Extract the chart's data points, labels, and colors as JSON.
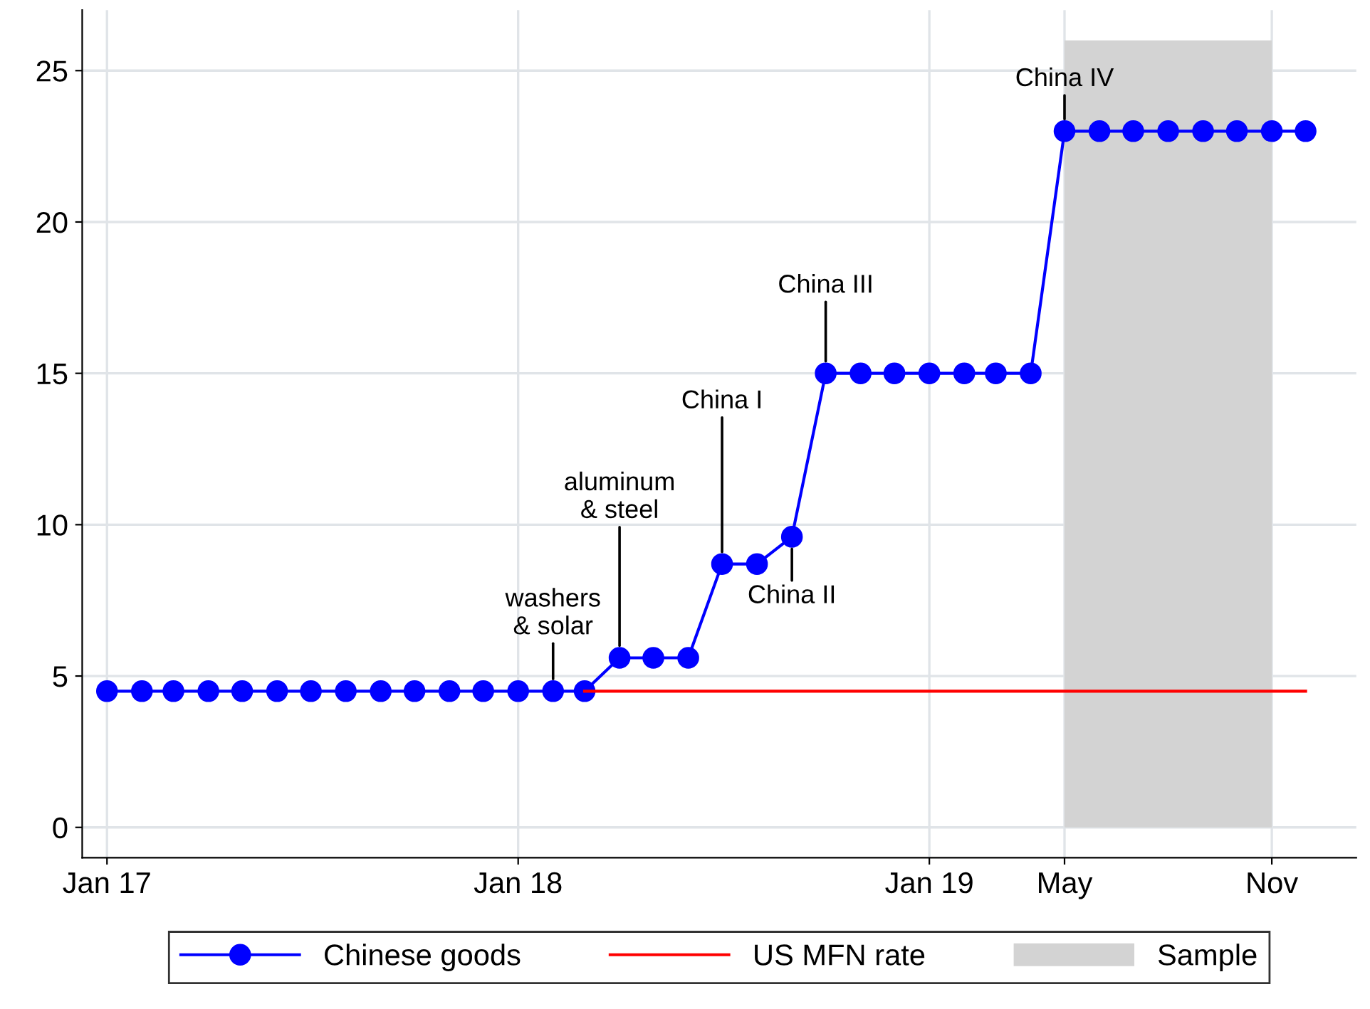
{
  "chart_data": {
    "type": "line",
    "series": [
      {
        "name": "Chinese goods",
        "color": "#0000ff",
        "marker": "circle",
        "x": [
          "2017-01",
          "2017-02",
          "2017-03",
          "2017-04",
          "2017-05",
          "2017-06",
          "2017-07",
          "2017-08",
          "2017-09",
          "2017-10",
          "2017-11",
          "2017-12",
          "2018-01",
          "2018-02",
          "2018-03",
          "2018-04",
          "2018-05",
          "2018-06",
          "2018-07",
          "2018-08",
          "2018-09",
          "2018-10",
          "2018-11",
          "2018-12",
          "2019-01",
          "2019-02",
          "2019-03",
          "2019-04",
          "2019-05",
          "2019-06",
          "2019-07",
          "2019-08",
          "2019-09",
          "2019-10",
          "2019-11",
          "2019-12"
        ],
        "values": [
          4.5,
          4.5,
          4.5,
          4.5,
          4.5,
          4.5,
          4.5,
          4.5,
          4.5,
          4.5,
          4.5,
          4.5,
          4.5,
          4.5,
          4.5,
          5.6,
          5.6,
          5.6,
          8.7,
          8.7,
          9.6,
          15,
          15,
          15,
          15,
          15,
          15,
          15,
          23,
          23,
          23,
          23,
          23,
          23,
          23,
          23
        ]
      },
      {
        "name": "US MFN rate",
        "color": "#ff0000",
        "marker": "none",
        "x": [
          "2018-03",
          "2019-12"
        ],
        "values": [
          4.5,
          4.5
        ]
      }
    ],
    "bands": [
      {
        "axis": "x",
        "from": "2019-05",
        "to": "2019-11",
        "label": "Sample",
        "color": "#d3d3d3"
      }
    ],
    "annotations": [
      {
        "text": "washers\n& solar",
        "x": "2018-02",
        "y": 4.5
      },
      {
        "text": "aluminum\n& steel",
        "x": "2018-04",
        "y": 5.6
      },
      {
        "text": "China I",
        "x": "2018-07",
        "y": 8.7
      },
      {
        "text": "China II",
        "x": "2018-09",
        "y": 9.6
      },
      {
        "text": "China III",
        "x": "2018-10",
        "y": 15
      },
      {
        "text": "China IV",
        "x": "2019-05",
        "y": 23
      }
    ],
    "xlim": [
      "2016-12-10",
      "2020-01-15"
    ],
    "xticks": [
      {
        "value": "2017-01",
        "label": "Jan 17"
      },
      {
        "value": "2018-01",
        "label": "Jan 18"
      },
      {
        "value": "2019-01",
        "label": "Jan 19"
      },
      {
        "value": "2019-05",
        "label": "May"
      },
      {
        "value": "2019-11",
        "label": "Nov"
      }
    ],
    "ylim": [
      -1,
      27
    ],
    "yticks": [
      0,
      5,
      10,
      15,
      20,
      25
    ],
    "grid": true,
    "legend": "bottom"
  }
}
